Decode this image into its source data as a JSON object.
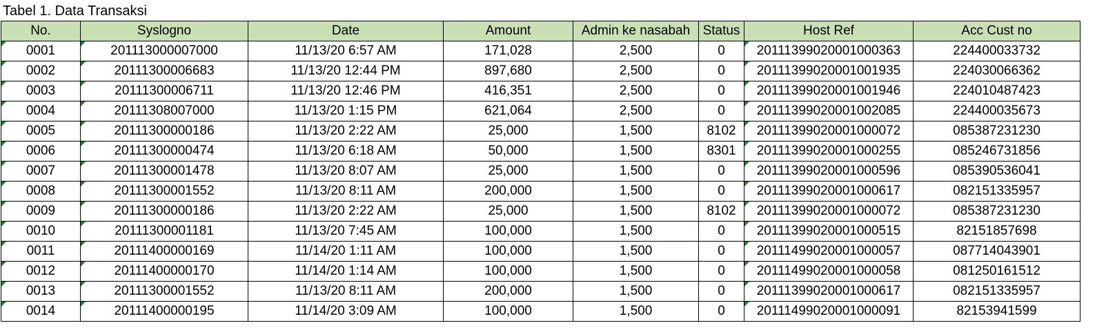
{
  "caption": "Tabel 1. Data Transaksi",
  "columns": [
    "No.",
    "Syslogno",
    "Date",
    "Amount",
    "Admin ke nasabah",
    "Status",
    "Host Ref",
    "Acc Cust no"
  ],
  "rows": [
    [
      "0001",
      "201113000007000",
      "11/13/20 6:57 AM",
      "171,028",
      "2,500",
      "0",
      "20111399020001000363",
      "224400033732"
    ],
    [
      "0002",
      "20111300006683",
      "11/13/20 12:44 PM",
      "897,680",
      "2,500",
      "0",
      "20111399020001001935",
      "224030066362"
    ],
    [
      "0003",
      "20111300006711",
      "11/13/20 12:46 PM",
      "416,351",
      "2,500",
      "0",
      "20111399020001001946",
      "224010487423"
    ],
    [
      "0004",
      "20111308007000",
      "11/13/20 1:15 PM",
      "621,064",
      "2,500",
      "0",
      "20111399020001002085",
      "224400035673"
    ],
    [
      "0005",
      "20111300000186",
      "11/13/20 2:22 AM",
      "25,000",
      "1,500",
      "8102",
      "20111399020001000072",
      "085387231230"
    ],
    [
      "0006",
      "20111300000474",
      "11/13/20 6:18 AM",
      "50,000",
      "1,500",
      "8301",
      "20111399020001000255",
      "085246731856"
    ],
    [
      "0007",
      "20111300001478",
      "11/13/20 8:07 AM",
      "25,000",
      "1,500",
      "0",
      "20111399020001000596",
      "085390536041"
    ],
    [
      "0008",
      "20111300001552",
      "11/13/20 8:11 AM",
      "200,000",
      "1,500",
      "0",
      "20111399020001000617",
      "082151335957"
    ],
    [
      "0009",
      "20111300000186",
      "11/13/20 2:22 AM",
      "25,000",
      "1,500",
      "8102",
      "20111399020001000072",
      "085387231230"
    ],
    [
      "0010",
      "20111300001181",
      "11/13/20 7:45 AM",
      "100,000",
      "1,500",
      "0",
      "20111399020001000515",
      "82151857698"
    ],
    [
      "0011",
      "20111400000169",
      "11/14/20 1:11 AM",
      "100,000",
      "1,500",
      "0",
      "20111499020001000057",
      "087714043901"
    ],
    [
      "0012",
      "20111400000170",
      "11/14/20 1:14 AM",
      "100,000",
      "1,500",
      "0",
      "20111499020001000058",
      "081250161512"
    ],
    [
      "0013",
      "20111300001552",
      "11/13/20 8:11 AM",
      "200,000",
      "1,500",
      "0",
      "20111399020001000617",
      "082151335957"
    ],
    [
      "0014",
      "20111400000195",
      "11/14/20 3:09 AM",
      "100,000",
      "1,500",
      "0",
      "20111499020001000091",
      "82153941599"
    ]
  ],
  "colors": {
    "header_bg": "#c9e0b4",
    "error_indicator": "#1e7a2e"
  }
}
